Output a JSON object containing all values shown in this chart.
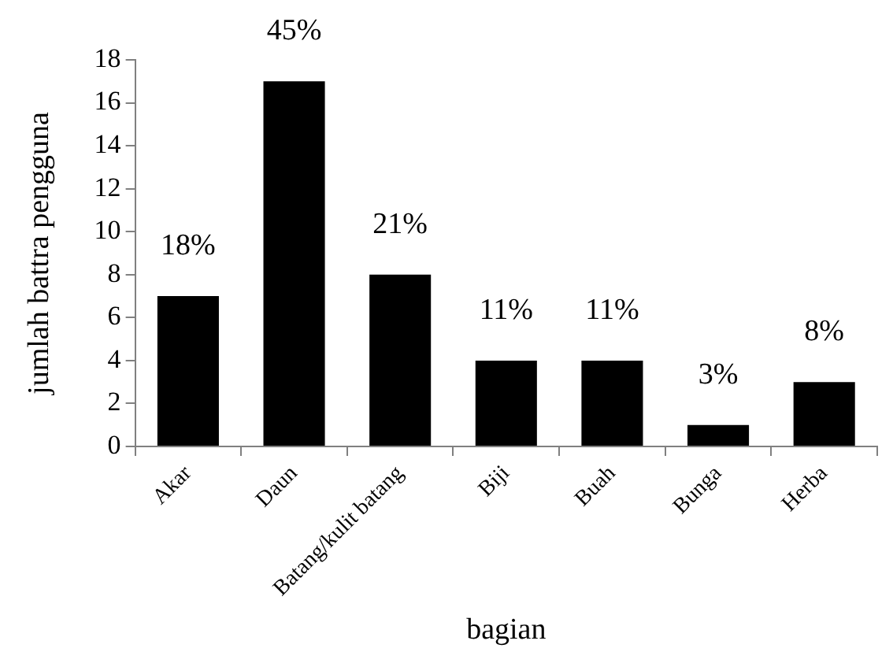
{
  "chart_data": {
    "type": "bar",
    "xlabel": "bagian",
    "ylabel": "jumlah battra pengguna",
    "categories": [
      "Akar",
      "Daun",
      "Batang/kulit batang",
      "Biji",
      "Buah",
      "Bunga",
      "Herba"
    ],
    "values": [
      7,
      17,
      8,
      4,
      4,
      1,
      3
    ],
    "annotations": [
      {
        "text": "18%",
        "x": "Akar",
        "y": 7
      },
      {
        "text": "45%",
        "x": "Daun",
        "y": 17
      },
      {
        "text": "21%",
        "x": "Batang/kulit batang",
        "y": 8
      },
      {
        "text": "11%",
        "x": "Biji",
        "y": 4
      },
      {
        "text": "11%",
        "x": "Buah",
        "y": 4
      },
      {
        "text": "3%",
        "x": "Bunga",
        "y": 1
      },
      {
        "text": "8%",
        "x": "Herba",
        "y": 3
      }
    ],
    "color": "#000000",
    "ylim": [
      0,
      18
    ],
    "yticks": [
      0,
      2,
      4,
      6,
      8,
      10,
      12,
      14,
      16,
      18
    ],
    "grid": false,
    "legend": false
  }
}
